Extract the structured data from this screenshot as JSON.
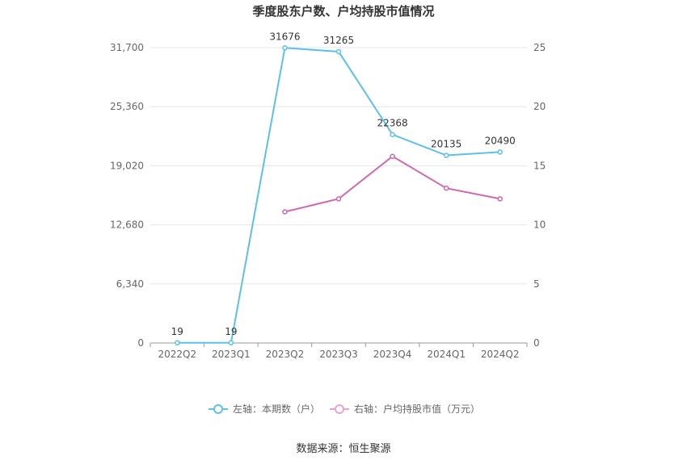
{
  "chart_data": {
    "type": "line",
    "title": "季度股东户数、户均持股市值情况",
    "categories": [
      "2022Q2",
      "2023Q1",
      "2023Q2",
      "2023Q3",
      "2023Q4",
      "2024Q1",
      "2024Q2"
    ],
    "left_axis": {
      "ylim": [
        0,
        31700
      ],
      "ticks": [
        "0",
        "6,340",
        "12,680",
        "19,020",
        "25,360",
        "31,700"
      ]
    },
    "right_axis": {
      "ylim": [
        0,
        25
      ],
      "ticks": [
        "0",
        "5",
        "10",
        "15",
        "20",
        "25"
      ]
    },
    "series": [
      {
        "name": "左轴：本期数（户）",
        "axis": "left",
        "color": "#5bc0eb",
        "values": [
          19,
          19,
          31676,
          31265,
          22368,
          20135,
          20490
        ],
        "labels": [
          "19",
          "19",
          "31676",
          "31265",
          "22368",
          "20135",
          "20490"
        ]
      },
      {
        "name": "右轴：户均持股市值（万元）",
        "axis": "right",
        "color": "#d067b0",
        "values": [
          null,
          null,
          11.1,
          12.2,
          15.8,
          13.1,
          12.2
        ]
      }
    ],
    "legend_position": "bottom",
    "grid": true
  },
  "source": "数据来源：恒生聚源"
}
